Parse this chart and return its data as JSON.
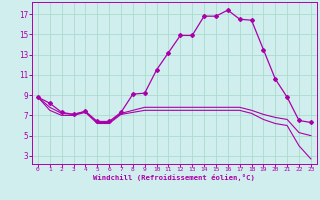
{
  "xlabel": "Windchill (Refroidissement éolien,°C)",
  "bg_color": "#d0eeee",
  "grid_color": "#aaddcc",
  "line_color": "#aa00aa",
  "x_ticks": [
    0,
    1,
    2,
    3,
    4,
    5,
    6,
    7,
    8,
    9,
    10,
    11,
    12,
    13,
    14,
    15,
    16,
    17,
    18,
    19,
    20,
    21,
    22,
    23
  ],
  "y_ticks": [
    3,
    5,
    7,
    9,
    11,
    13,
    15,
    17
  ],
  "ylim": [
    2.2,
    18.2
  ],
  "xlim": [
    -0.5,
    23.5
  ],
  "temp_line": [
    8.8,
    8.2,
    7.3,
    7.1,
    7.4,
    6.4,
    6.4,
    7.3,
    9.1,
    9.2,
    11.5,
    13.2,
    14.9,
    14.9,
    16.8,
    16.8,
    17.4,
    16.5,
    16.4,
    13.5,
    10.6,
    8.8,
    6.5,
    6.3
  ],
  "windchill_line": [
    8.8,
    7.8,
    7.2,
    7.1,
    7.4,
    6.3,
    6.3,
    7.2,
    7.5,
    7.8,
    7.8,
    7.8,
    7.8,
    7.8,
    7.8,
    7.8,
    7.8,
    7.8,
    7.5,
    7.1,
    6.8,
    6.6,
    5.3,
    5.0
  ],
  "feels_line": [
    8.8,
    7.5,
    7.0,
    7.0,
    7.3,
    6.2,
    6.2,
    7.1,
    7.3,
    7.5,
    7.5,
    7.5,
    7.5,
    7.5,
    7.5,
    7.5,
    7.5,
    7.5,
    7.2,
    6.6,
    6.2,
    6.0,
    4.0,
    2.7
  ]
}
